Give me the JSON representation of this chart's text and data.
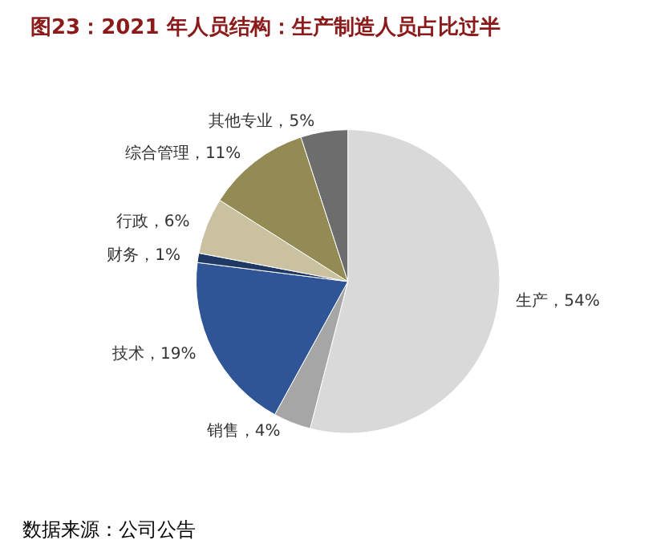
{
  "chart_data": {
    "type": "pie",
    "title": "图23：2021 年人员结构：生产制造人员占比过半",
    "categories": [
      "生产",
      "销售",
      "技术",
      "财务",
      "行政",
      "综合管理",
      "其他专业"
    ],
    "values": [
      54,
      4,
      19,
      1,
      6,
      11,
      5
    ],
    "value_labels": [
      "54%",
      "4%",
      "19%",
      "1%",
      "6%",
      "11%",
      "5%"
    ],
    "colors": [
      "#d9d9d9",
      "#a6a6a6",
      "#2f5597",
      "#1f3864",
      "#c9c1a0",
      "#948a54",
      "#6d6d6d"
    ],
    "annotations": [
      "数据来源：公司公告"
    ],
    "legend": false
  }
}
